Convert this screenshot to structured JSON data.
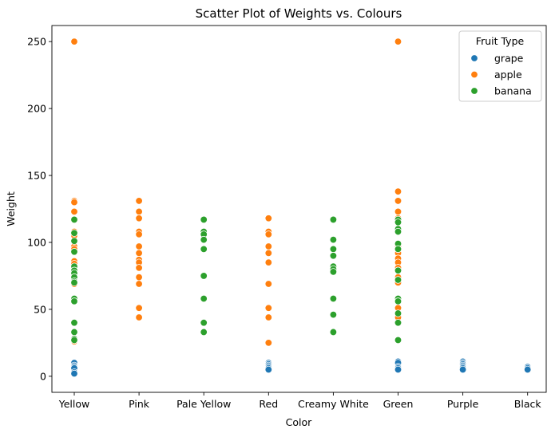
{
  "chart_data": {
    "type": "scatter",
    "title": "Scatter Plot of Weights vs. Colours",
    "xlabel": "Color",
    "ylabel": "Weight",
    "categories": [
      "Yellow",
      "Pink",
      "Pale Yellow",
      "Red",
      "Creamy White",
      "Green",
      "Purple",
      "Black"
    ],
    "yticks": [
      0,
      50,
      100,
      150,
      200,
      250
    ],
    "ylim": [
      -12,
      262
    ],
    "grid": false,
    "legend": {
      "title": "Fruit Type",
      "placement": "top-right"
    },
    "series": [
      {
        "name": "grape",
        "color": "#1f77b4",
        "points": [
          {
            "x": "Yellow",
            "y": 10
          },
          {
            "x": "Yellow",
            "y": 8
          },
          {
            "x": "Yellow",
            "y": 7
          },
          {
            "x": "Yellow",
            "y": 6
          },
          {
            "x": "Yellow",
            "y": 3
          },
          {
            "x": "Yellow",
            "y": 2
          },
          {
            "x": "Red",
            "y": 10
          },
          {
            "x": "Red",
            "y": 9
          },
          {
            "x": "Red",
            "y": 8
          },
          {
            "x": "Red",
            "y": 7
          },
          {
            "x": "Red",
            "y": 6
          },
          {
            "x": "Red",
            "y": 5
          },
          {
            "x": "Green",
            "y": 11
          },
          {
            "x": "Green",
            "y": 10
          },
          {
            "x": "Green",
            "y": 7
          },
          {
            "x": "Green",
            "y": 6
          },
          {
            "x": "Green",
            "y": 5
          },
          {
            "x": "Purple",
            "y": 11
          },
          {
            "x": "Purple",
            "y": 10
          },
          {
            "x": "Purple",
            "y": 9
          },
          {
            "x": "Purple",
            "y": 8
          },
          {
            "x": "Purple",
            "y": 7
          },
          {
            "x": "Purple",
            "y": 6
          },
          {
            "x": "Purple",
            "y": 5
          },
          {
            "x": "Black",
            "y": 7
          },
          {
            "x": "Black",
            "y": 6
          },
          {
            "x": "Black",
            "y": 5
          }
        ]
      },
      {
        "name": "apple",
        "color": "#ff7f0e",
        "points": [
          {
            "x": "Yellow",
            "y": 250
          },
          {
            "x": "Yellow",
            "y": 131
          },
          {
            "x": "Yellow",
            "y": 130
          },
          {
            "x": "Yellow",
            "y": 123
          },
          {
            "x": "Yellow",
            "y": 108
          },
          {
            "x": "Yellow",
            "y": 105
          },
          {
            "x": "Yellow",
            "y": 97
          },
          {
            "x": "Yellow",
            "y": 95
          },
          {
            "x": "Yellow",
            "y": 86
          },
          {
            "x": "Yellow",
            "y": 84
          },
          {
            "x": "Yellow",
            "y": 73
          },
          {
            "x": "Yellow",
            "y": 69
          },
          {
            "x": "Yellow",
            "y": 26
          },
          {
            "x": "Pink",
            "y": 131
          },
          {
            "x": "Pink",
            "y": 123
          },
          {
            "x": "Pink",
            "y": 118
          },
          {
            "x": "Pink",
            "y": 108
          },
          {
            "x": "Pink",
            "y": 106
          },
          {
            "x": "Pink",
            "y": 97
          },
          {
            "x": "Pink",
            "y": 92
          },
          {
            "x": "Pink",
            "y": 87
          },
          {
            "x": "Pink",
            "y": 85
          },
          {
            "x": "Pink",
            "y": 81
          },
          {
            "x": "Pink",
            "y": 74
          },
          {
            "x": "Pink",
            "y": 69
          },
          {
            "x": "Pink",
            "y": 51
          },
          {
            "x": "Pink",
            "y": 44
          },
          {
            "x": "Red",
            "y": 118
          },
          {
            "x": "Red",
            "y": 108
          },
          {
            "x": "Red",
            "y": 106
          },
          {
            "x": "Red",
            "y": 97
          },
          {
            "x": "Red",
            "y": 92
          },
          {
            "x": "Red",
            "y": 85
          },
          {
            "x": "Red",
            "y": 69
          },
          {
            "x": "Red",
            "y": 51
          },
          {
            "x": "Red",
            "y": 44
          },
          {
            "x": "Red",
            "y": 25
          },
          {
            "x": "Green",
            "y": 250
          },
          {
            "x": "Green",
            "y": 138
          },
          {
            "x": "Green",
            "y": 131
          },
          {
            "x": "Green",
            "y": 123
          },
          {
            "x": "Green",
            "y": 118
          },
          {
            "x": "Green",
            "y": 108
          },
          {
            "x": "Green",
            "y": 97
          },
          {
            "x": "Green",
            "y": 92
          },
          {
            "x": "Green",
            "y": 88
          },
          {
            "x": "Green",
            "y": 85
          },
          {
            "x": "Green",
            "y": 81
          },
          {
            "x": "Green",
            "y": 74
          },
          {
            "x": "Green",
            "y": 70
          },
          {
            "x": "Green",
            "y": 51
          },
          {
            "x": "Green",
            "y": 44
          }
        ]
      },
      {
        "name": "banana",
        "color": "#2ca02c",
        "points": [
          {
            "x": "Yellow",
            "y": 117
          },
          {
            "x": "Yellow",
            "y": 107
          },
          {
            "x": "Yellow",
            "y": 101
          },
          {
            "x": "Yellow",
            "y": 93
          },
          {
            "x": "Yellow",
            "y": 82
          },
          {
            "x": "Yellow",
            "y": 79
          },
          {
            "x": "Yellow",
            "y": 77
          },
          {
            "x": "Yellow",
            "y": 74
          },
          {
            "x": "Yellow",
            "y": 71
          },
          {
            "x": "Yellow",
            "y": 70
          },
          {
            "x": "Yellow",
            "y": 58
          },
          {
            "x": "Yellow",
            "y": 56
          },
          {
            "x": "Yellow",
            "y": 40
          },
          {
            "x": "Yellow",
            "y": 33
          },
          {
            "x": "Yellow",
            "y": 28
          },
          {
            "x": "Yellow",
            "y": 27
          },
          {
            "x": "Pale Yellow",
            "y": 117
          },
          {
            "x": "Pale Yellow",
            "y": 108
          },
          {
            "x": "Pale Yellow",
            "y": 106
          },
          {
            "x": "Pale Yellow",
            "y": 102
          },
          {
            "x": "Pale Yellow",
            "y": 95
          },
          {
            "x": "Pale Yellow",
            "y": 75
          },
          {
            "x": "Pale Yellow",
            "y": 58
          },
          {
            "x": "Pale Yellow",
            "y": 40
          },
          {
            "x": "Pale Yellow",
            "y": 33
          },
          {
            "x": "Creamy White",
            "y": 117
          },
          {
            "x": "Creamy White",
            "y": 102
          },
          {
            "x": "Creamy White",
            "y": 95
          },
          {
            "x": "Creamy White",
            "y": 90
          },
          {
            "x": "Creamy White",
            "y": 82
          },
          {
            "x": "Creamy White",
            "y": 80
          },
          {
            "x": "Creamy White",
            "y": 78
          },
          {
            "x": "Creamy White",
            "y": 58
          },
          {
            "x": "Creamy White",
            "y": 46
          },
          {
            "x": "Creamy White",
            "y": 33
          },
          {
            "x": "Green",
            "y": 117
          },
          {
            "x": "Green",
            "y": 115
          },
          {
            "x": "Green",
            "y": 110
          },
          {
            "x": "Green",
            "y": 108
          },
          {
            "x": "Green",
            "y": 99
          },
          {
            "x": "Green",
            "y": 95
          },
          {
            "x": "Green",
            "y": 79
          },
          {
            "x": "Green",
            "y": 72
          },
          {
            "x": "Green",
            "y": 58
          },
          {
            "x": "Green",
            "y": 56
          },
          {
            "x": "Green",
            "y": 47
          },
          {
            "x": "Green",
            "y": 40
          },
          {
            "x": "Green",
            "y": 27
          }
        ]
      }
    ]
  }
}
